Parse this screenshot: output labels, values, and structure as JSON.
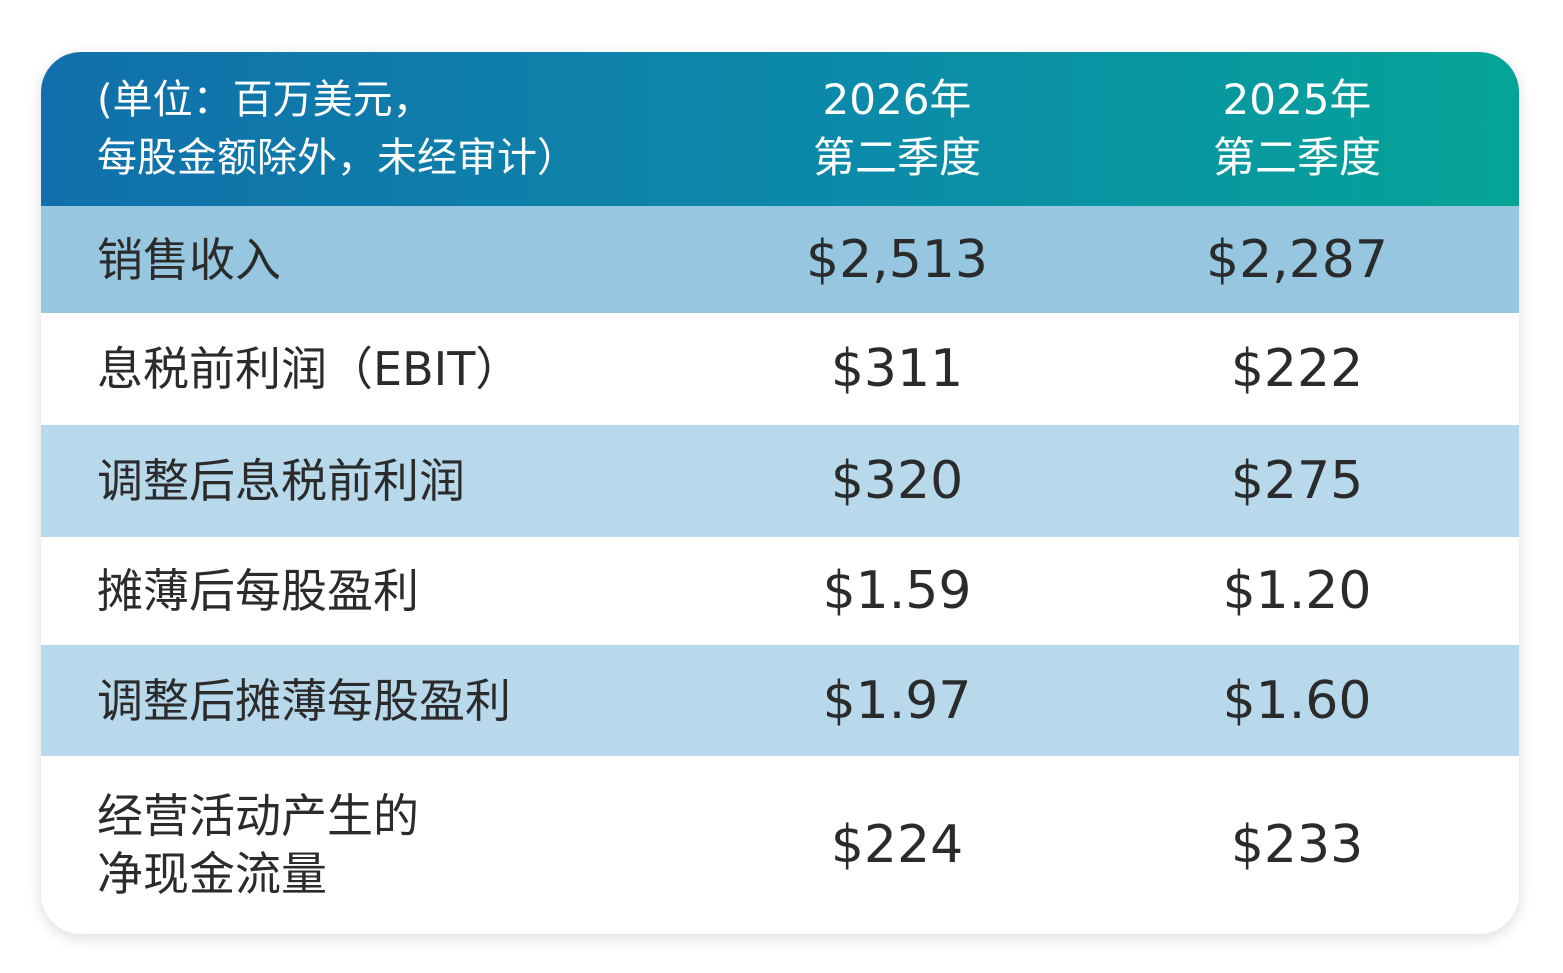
{
  "table": {
    "header": {
      "label": "(单位：百万美元，\n每股金额除外，未经审计）",
      "col1": "2026年\n第二季度",
      "col2": "2025年\n第二季度"
    },
    "rows": [
      {
        "label": "销售收入",
        "col1": "$2,513",
        "col2": "$2,287"
      },
      {
        "label": "息税前利润（EBIT）",
        "col1": "$311",
        "col2": "$222"
      },
      {
        "label": "调整后息税前利润",
        "col1": "$320",
        "col2": "$275"
      },
      {
        "label": "摊薄后每股盈利",
        "col1": "$1.59",
        "col2": "$1.20"
      },
      {
        "label": "调整后摊薄每股盈利",
        "col1": "$1.97",
        "col2": "$1.60"
      },
      {
        "label": "经营活动产生的\n净现金流量",
        "col1": "$224",
        "col2": "$233"
      }
    ],
    "colors": {
      "header_start": "#1170ab",
      "header_end": "#05a497",
      "row_dark": "#96c6e0",
      "row_light": "#b8d8ec",
      "row_white": "#ffffff"
    }
  }
}
